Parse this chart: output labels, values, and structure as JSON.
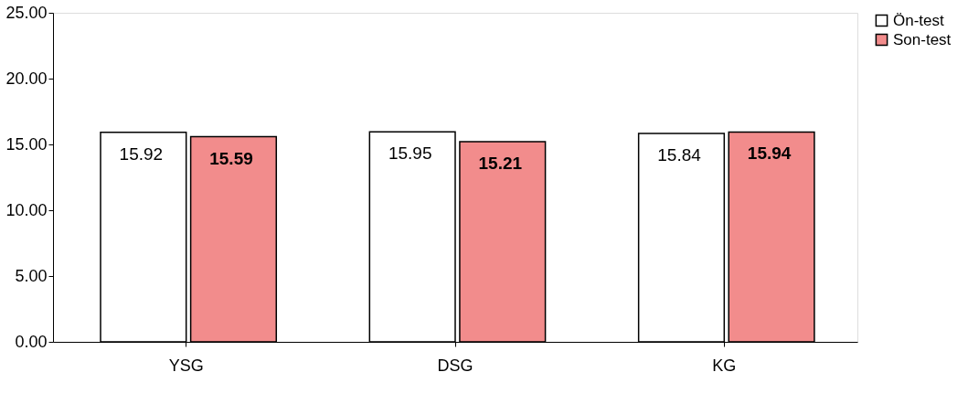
{
  "chart_data": {
    "type": "bar",
    "categories": [
      "YSG",
      "DSG",
      "KG"
    ],
    "series": [
      {
        "name": "Ön-test",
        "color": "#ffffff",
        "values": [
          15.92,
          15.95,
          15.84
        ]
      },
      {
        "name": "Son-test",
        "color": "#f28c8c",
        "values": [
          15.59,
          15.21,
          15.94
        ]
      }
    ],
    "ylim": [
      0,
      25
    ],
    "yticks": [
      {
        "value": 0,
        "label": "0.00"
      },
      {
        "value": 5,
        "label": "5.00"
      },
      {
        "value": 10,
        "label": "10.00"
      },
      {
        "value": 15,
        "label": "15.00"
      },
      {
        "value": 20,
        "label": "20.00"
      },
      {
        "value": 25,
        "label": "25.00"
      }
    ],
    "data_labels": true,
    "legend": "right",
    "grid": false
  }
}
